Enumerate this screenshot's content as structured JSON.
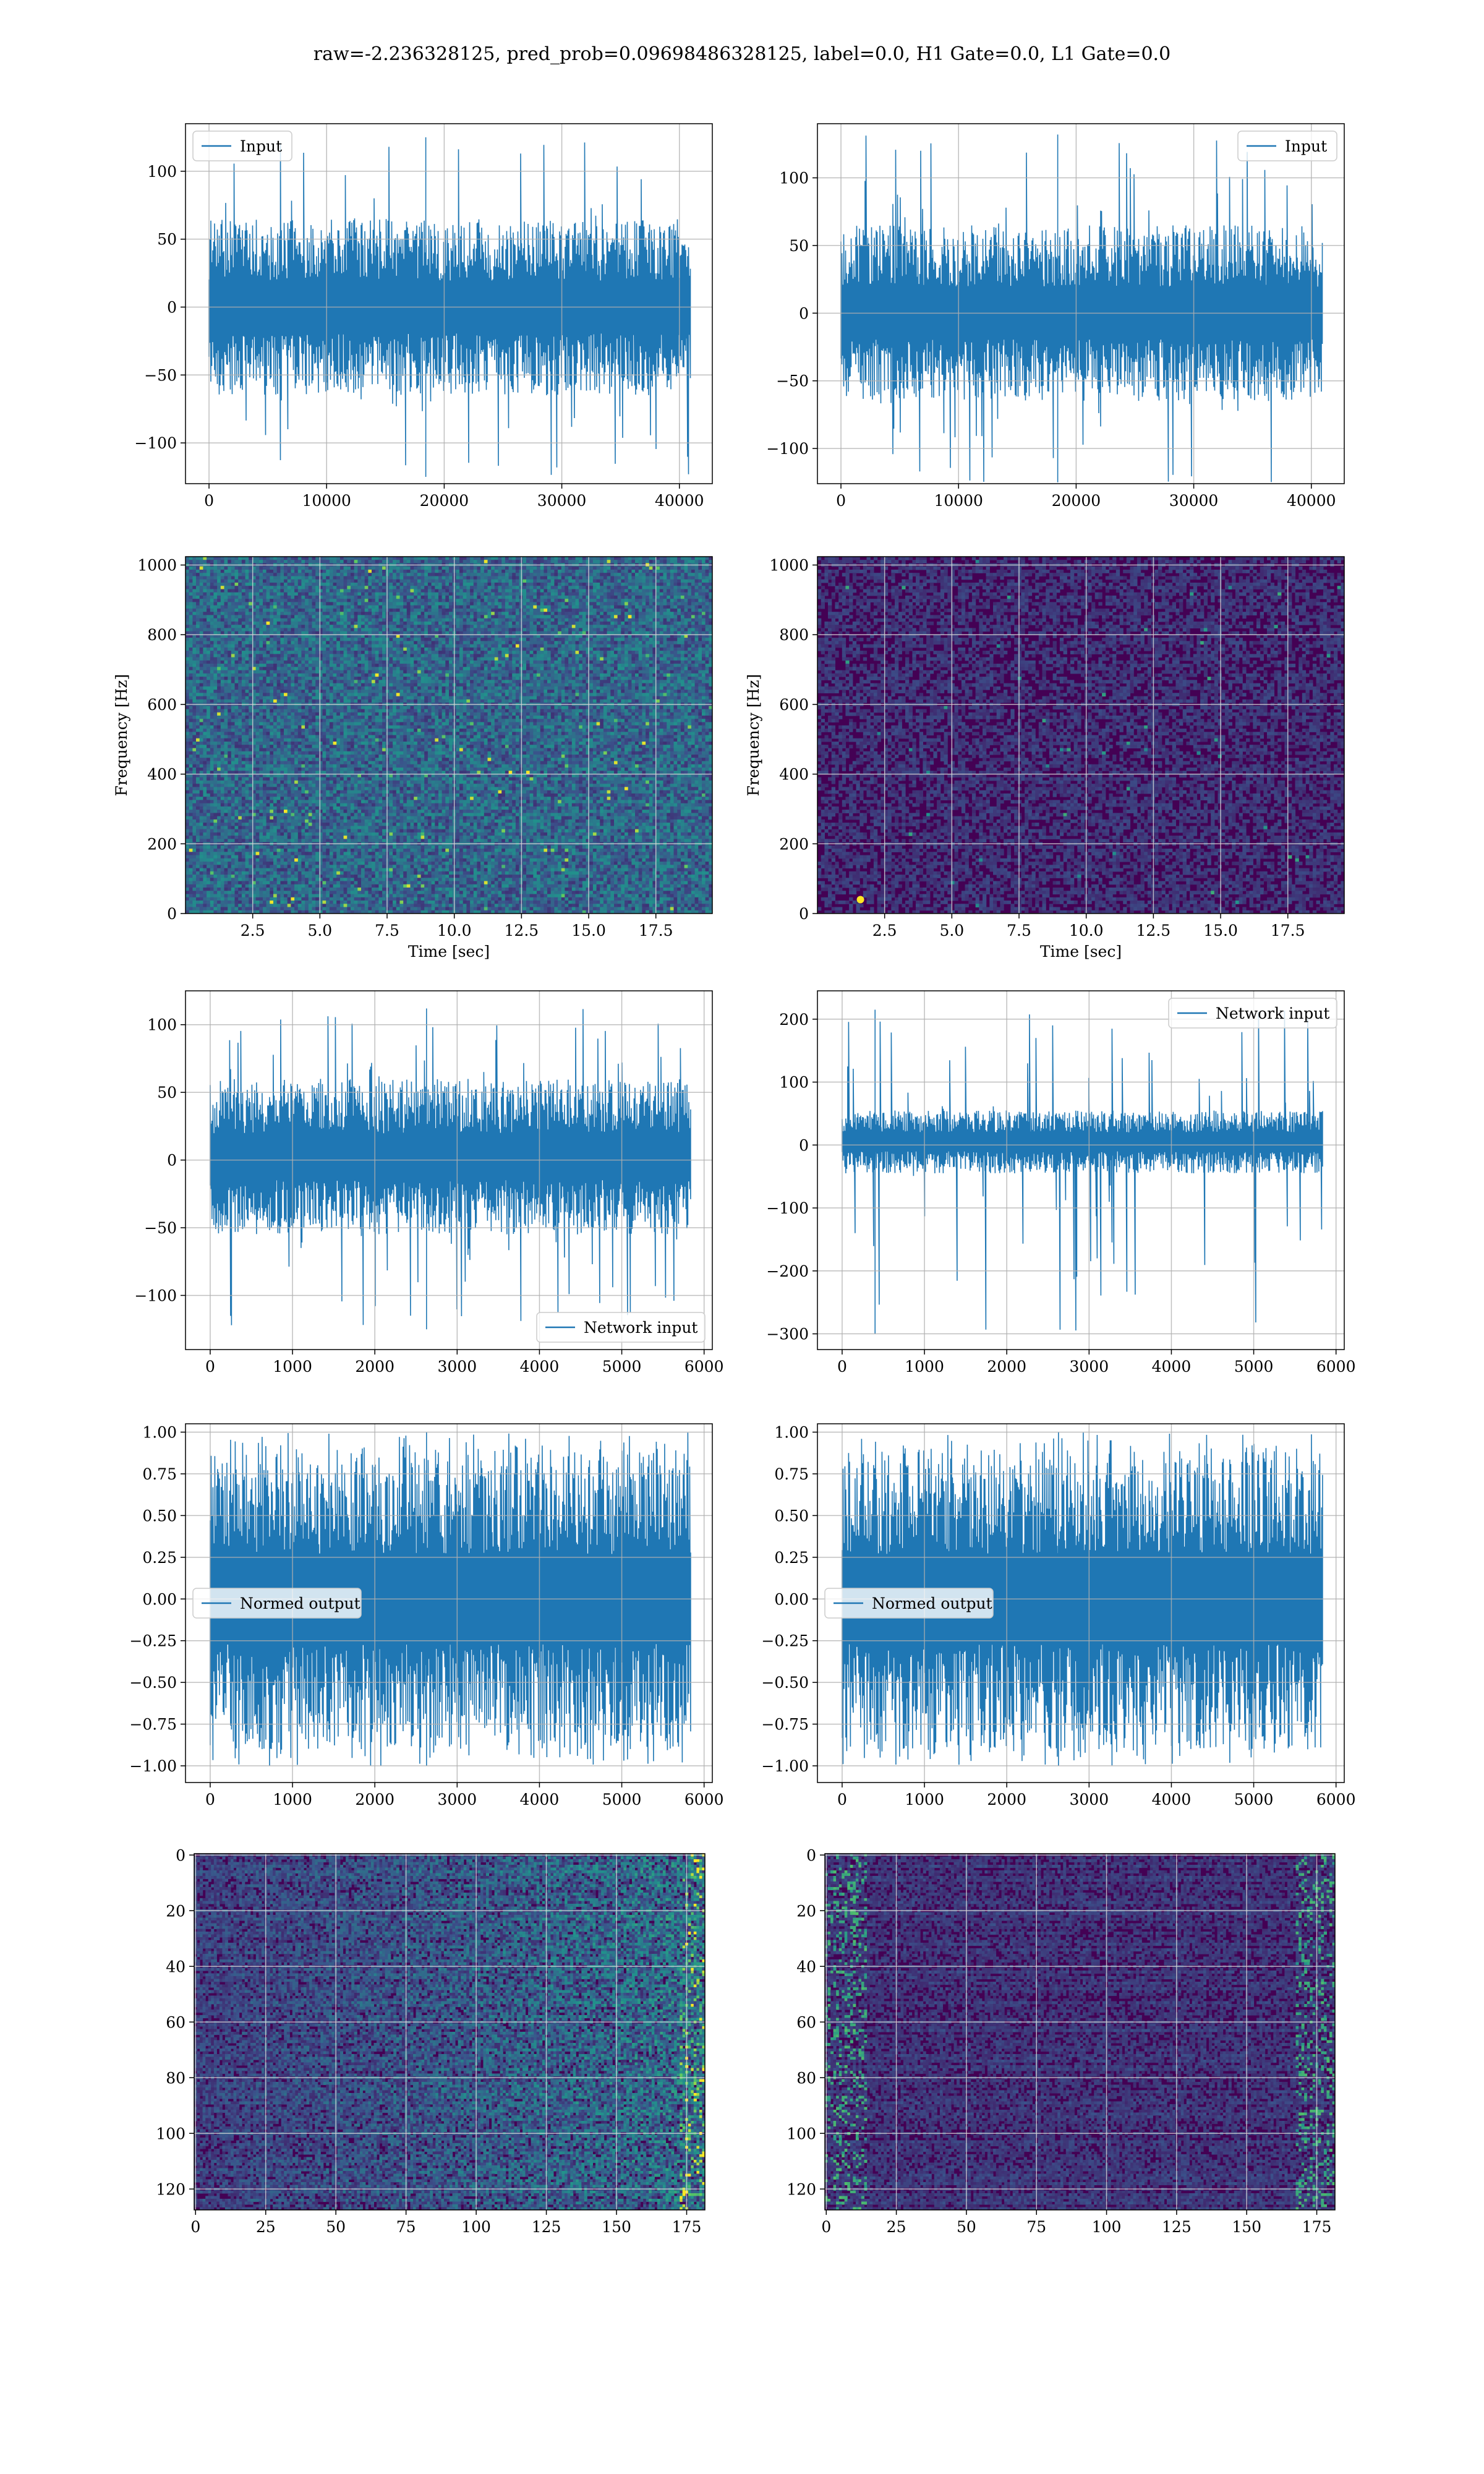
{
  "title": "raw=-2.236328125, pred_prob=0.09698486328125, label=0.0, H1 Gate=0.0, L1 Gate=0.0",
  "colors": {
    "series": "#1f77b4",
    "grid": "#b0b0b0",
    "viridis_low": "#440154",
    "viridis_mid": "#21918c",
    "viridis_high": "#fde725"
  },
  "chart_data": [
    {
      "id": "r1c1",
      "type": "line",
      "legend": "Input",
      "legend_loc": "upper left",
      "xlim": [
        -2000,
        42800
      ],
      "ylim": [
        -130,
        135
      ],
      "xticks": [
        0,
        10000,
        20000,
        30000,
        40000
      ],
      "xtick_labels": [
        "0",
        "10000",
        "20000",
        "30000",
        "40000"
      ],
      "yticks": [
        -100,
        -50,
        0,
        50,
        100
      ],
      "ytick_labels": [
        "−100",
        "−50",
        "0",
        "50",
        "100"
      ],
      "data_x_range": [
        0,
        40960
      ],
      "band": [
        -65,
        65
      ],
      "peak": [
        -125,
        125
      ]
    },
    {
      "id": "r1c2",
      "type": "line",
      "legend": "Input",
      "legend_loc": "upper right",
      "xlim": [
        -2000,
        42800
      ],
      "ylim": [
        -126,
        140
      ],
      "xticks": [
        0,
        10000,
        20000,
        30000,
        40000
      ],
      "xtick_labels": [
        "0",
        "10000",
        "20000",
        "30000",
        "40000"
      ],
      "yticks": [
        -100,
        -50,
        0,
        50,
        100
      ],
      "ytick_labels": [
        "−100",
        "−50",
        "0",
        "50",
        "100"
      ],
      "data_x_range": [
        0,
        40960
      ],
      "band": [
        -65,
        65
      ],
      "peak": [
        -125,
        132
      ]
    },
    {
      "id": "r2c1",
      "type": "heatmap",
      "xlabel": "Time [sec]",
      "ylabel": "Frequency [Hz]",
      "xlim": [
        0,
        19.6
      ],
      "ylim": [
        0,
        1024
      ],
      "xticks": [
        2.5,
        5.0,
        7.5,
        10.0,
        12.5,
        15.0,
        17.5
      ],
      "xtick_labels": [
        "2.5",
        "5.0",
        "7.5",
        "10.0",
        "12.5",
        "15.0",
        "17.5"
      ],
      "yticks": [
        0,
        200,
        400,
        600,
        800,
        1000
      ],
      "ytick_labels": [
        "0",
        "200",
        "400",
        "600",
        "800",
        "1000"
      ],
      "intensity": "medium"
    },
    {
      "id": "r2c2",
      "type": "heatmap",
      "xlabel": "Time [sec]",
      "ylabel": "Frequency [Hz]",
      "xlim": [
        0,
        19.6
      ],
      "ylim": [
        0,
        1024
      ],
      "xticks": [
        2.5,
        5.0,
        7.5,
        10.0,
        12.5,
        15.0,
        17.5
      ],
      "xtick_labels": [
        "2.5",
        "5.0",
        "7.5",
        "10.0",
        "12.5",
        "15.0",
        "17.5"
      ],
      "yticks": [
        0,
        200,
        400,
        600,
        800,
        1000
      ],
      "ytick_labels": [
        "0",
        "200",
        "400",
        "600",
        "800",
        "1000"
      ],
      "intensity": "low",
      "hotspot": [
        1.6,
        40
      ]
    },
    {
      "id": "r3c1",
      "type": "line",
      "legend": "Network input",
      "legend_loc": "lower right",
      "xlim": [
        -300,
        6100
      ],
      "ylim": [
        -140,
        125
      ],
      "xticks": [
        0,
        1000,
        2000,
        3000,
        4000,
        5000,
        6000
      ],
      "xtick_labels": [
        "0",
        "1000",
        "2000",
        "3000",
        "4000",
        "5000",
        "6000"
      ],
      "yticks": [
        -100,
        -50,
        0,
        50,
        100
      ],
      "ytick_labels": [
        "−100",
        "−50",
        "0",
        "50",
        "100"
      ],
      "data_x_range": [
        0,
        5840
      ],
      "band": [
        -55,
        60
      ],
      "peak": [
        -125,
        112
      ]
    },
    {
      "id": "r3c2",
      "type": "line",
      "legend": "Network input",
      "legend_loc": "upper right",
      "xlim": [
        -300,
        6100
      ],
      "ylim": [
        -325,
        245
      ],
      "xticks": [
        0,
        1000,
        2000,
        3000,
        4000,
        5000,
        6000
      ],
      "xtick_labels": [
        "0",
        "1000",
        "2000",
        "3000",
        "4000",
        "5000",
        "6000"
      ],
      "yticks": [
        -300,
        -200,
        -100,
        0,
        100,
        200
      ],
      "ytick_labels": [
        "−300",
        "−200",
        "−100",
        "0",
        "100",
        "200"
      ],
      "data_x_range": [
        0,
        5840
      ],
      "band": [
        -45,
        55
      ],
      "peak": [
        -300,
        215
      ],
      "spike_x": 400
    },
    {
      "id": "r4c1",
      "type": "line",
      "legend": "Normed output",
      "legend_loc": "center left",
      "xlim": [
        -300,
        6100
      ],
      "ylim": [
        -1.1,
        1.05
      ],
      "xticks": [
        0,
        1000,
        2000,
        3000,
        4000,
        5000,
        6000
      ],
      "xtick_labels": [
        "0",
        "1000",
        "2000",
        "3000",
        "4000",
        "5000",
        "6000"
      ],
      "yticks": [
        -1.0,
        -0.75,
        -0.5,
        -0.25,
        0.0,
        0.25,
        0.5,
        0.75,
        1.0
      ],
      "ytick_labels": [
        "−1.00",
        "−0.75",
        "−0.50",
        "−0.25",
        "0.00",
        "0.25",
        "0.50",
        "0.75",
        "1.00"
      ],
      "data_x_range": [
        0,
        5840
      ],
      "band": [
        -0.9,
        0.9
      ],
      "peak": [
        -1.0,
        1.0
      ]
    },
    {
      "id": "r4c2",
      "type": "line",
      "legend": "Normed output",
      "legend_loc": "center left",
      "xlim": [
        -300,
        6100
      ],
      "ylim": [
        -1.1,
        1.05
      ],
      "xticks": [
        0,
        1000,
        2000,
        3000,
        4000,
        5000,
        6000
      ],
      "xtick_labels": [
        "0",
        "1000",
        "2000",
        "3000",
        "4000",
        "5000",
        "6000"
      ],
      "yticks": [
        -1.0,
        -0.75,
        -0.5,
        -0.25,
        0.0,
        0.25,
        0.5,
        0.75,
        1.0
      ],
      "ytick_labels": [
        "−1.00",
        "−0.75",
        "−0.50",
        "−0.25",
        "0.00",
        "0.25",
        "0.50",
        "0.75",
        "1.00"
      ],
      "data_x_range": [
        0,
        5840
      ],
      "band": [
        -0.9,
        0.9
      ],
      "peak": [
        -1.0,
        1.0
      ]
    },
    {
      "id": "r5c1",
      "type": "heatmap",
      "y_inverted": true,
      "xlim": [
        -0.5,
        181.5
      ],
      "ylim": [
        127.5,
        -0.5
      ],
      "xticks": [
        0,
        25,
        50,
        75,
        100,
        125,
        150,
        175
      ],
      "xtick_labels": [
        "0",
        "25",
        "50",
        "75",
        "100",
        "125",
        "150",
        "175"
      ],
      "yticks": [
        0,
        20,
        40,
        60,
        80,
        100,
        120
      ],
      "ytick_labels": [
        "0",
        "20",
        "40",
        "60",
        "80",
        "100",
        "120"
      ],
      "intensity": "low-rising"
    },
    {
      "id": "r5c2",
      "type": "heatmap",
      "y_inverted": true,
      "xlim": [
        -0.5,
        181.5
      ],
      "ylim": [
        127.5,
        -0.5
      ],
      "xticks": [
        0,
        25,
        50,
        75,
        100,
        125,
        150,
        175
      ],
      "xtick_labels": [
        "0",
        "25",
        "50",
        "75",
        "100",
        "125",
        "150",
        "175"
      ],
      "yticks": [
        0,
        20,
        40,
        60,
        80,
        100,
        120
      ],
      "ytick_labels": [
        "0",
        "20",
        "40",
        "60",
        "80",
        "100",
        "120"
      ],
      "intensity": "edges"
    }
  ]
}
